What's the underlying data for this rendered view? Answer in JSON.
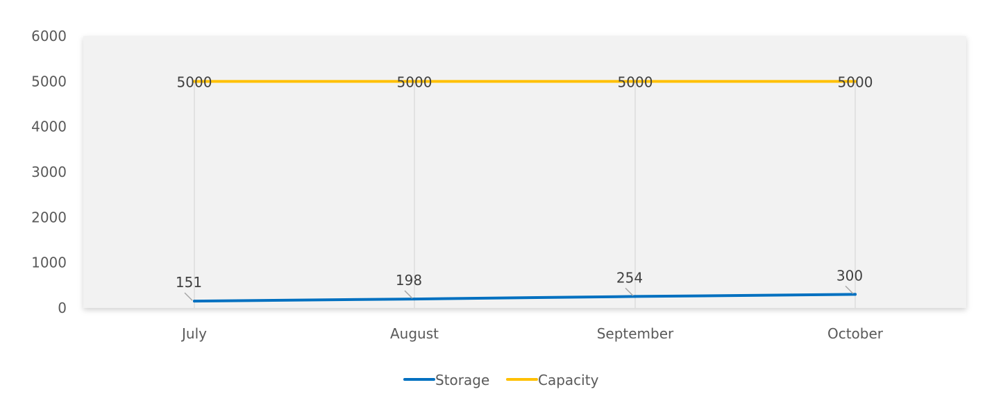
{
  "chart_data": {
    "type": "line",
    "title": "",
    "xlabel": "",
    "ylabel": "",
    "categories": [
      "July",
      "August",
      "September",
      "October"
    ],
    "ylim": [
      0,
      6000
    ],
    "yticks": [
      "0",
      "1000",
      "2000",
      "3000",
      "4000",
      "5000",
      "6000"
    ],
    "grid": "vertical",
    "legend_position": "bottom",
    "series": [
      {
        "name": "Storage",
        "values": [
          151,
          198,
          254,
          300
        ],
        "color": "#0070C0",
        "labels": [
          "151",
          "198",
          "254",
          "300"
        ]
      },
      {
        "name": "Capacity",
        "values": [
          5000,
          5000,
          5000,
          5000
        ],
        "color": "#FFC000",
        "labels": [
          "5000",
          "5000",
          "5000",
          "5000"
        ]
      }
    ],
    "plot_background": "#F2F2F2",
    "gridline_color": "#D9D9D9"
  }
}
